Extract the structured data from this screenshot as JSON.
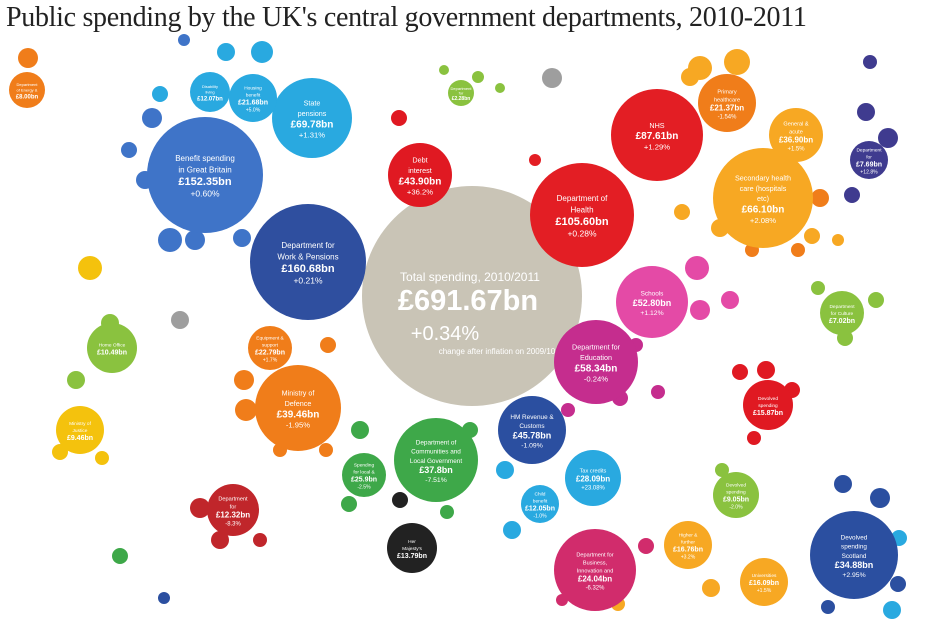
{
  "title": "Public spending by the UK's central government departments, 2010-2011",
  "colors": {
    "background": "#ffffff",
    "total": "#c9c4b6",
    "work_pensions": "#2f4f9f",
    "benefits": "#3f74c8",
    "state_pensions": "#29a9e0",
    "health": "#e31e24",
    "health_sub": "#f7a823",
    "education": "#c52d8e",
    "education_sub": "#e44aa6",
    "defence": "#f07d1a",
    "communities": "#3ea849",
    "hmrc": "#2b4fa0",
    "business": "#d12c6c",
    "scotland": "#2b4fa0",
    "culture": "#8ac23f",
    "debt": "#e01922",
    "transport": "#c0262b",
    "treasury": "#222222",
    "intl_dev": "#3f3b8f",
    "foreign": "#f4c20d",
    "misc_grey": "#9e9e9e"
  },
  "chart_data": {
    "type": "bubble",
    "title": "Public spending by the UK's central government departments, 2010-2011",
    "total": {
      "label": "Total spending, 2010/2011",
      "value": "£691.67bn",
      "change": "+0.34%",
      "change_note": "change after inflation on 2009/10"
    },
    "bubbles": [
      {
        "id": "work-pensions",
        "name": "Department for Work & Pensions",
        "value": "£160.68bn",
        "change": "+0.21%",
        "color": "#2f4f9f"
      },
      {
        "id": "benefits",
        "name": "Benefit spending in Great Britain",
        "value": "£152.35bn",
        "change": "+0.60%",
        "color": "#3f74c8"
      },
      {
        "id": "state-pensions",
        "name": "State pensions",
        "value": "£69.78bn",
        "change": "+1.31%",
        "color": "#29a9e0"
      },
      {
        "id": "health",
        "name": "Department of Health",
        "value": "£105.60bn",
        "change": "+0.28%",
        "color": "#e31e24"
      },
      {
        "id": "nhs",
        "name": "NHS",
        "value": "£87.61bn",
        "change": "+1.29%",
        "color": "#e31e24"
      },
      {
        "id": "secondary-health",
        "name": "Secondary health care (hospitals etc)",
        "value": "£66.10bn",
        "change": "+2.08%",
        "color": "#f7a823"
      },
      {
        "id": "primary-health",
        "name": "Primary healthcare",
        "value": "£21.37bn",
        "change": "-1.54%",
        "color": "#f07d1a"
      },
      {
        "id": "general-acute",
        "name": "General & acute",
        "value": "£36.90bn",
        "change": "+1.5%",
        "color": "#f7a823"
      },
      {
        "id": "debt",
        "name": "Debt interest",
        "value": "£43.90bn",
        "change": "+36.2%",
        "color": "#e01922"
      },
      {
        "id": "education",
        "name": "Department for Education",
        "value": "£58.34bn",
        "change": "-0.24%",
        "color": "#c52d8e"
      },
      {
        "id": "schools",
        "name": "Schools",
        "value": "£52.80bn",
        "change": "+1.12%",
        "color": "#e44aa6"
      },
      {
        "id": "defence",
        "name": "Ministry of Defence",
        "value": "£39.46bn",
        "change": "-1.95%",
        "color": "#f07d1a"
      },
      {
        "id": "equipment",
        "name": "Equipment & support",
        "value": "£22.79bn",
        "change": "+1.7%",
        "color": "#f07d1a"
      },
      {
        "id": "communities",
        "name": "Department of Communities and Local Government",
        "value": "£37.8bn",
        "change": "-7.51%",
        "color": "#3ea849"
      },
      {
        "id": "hmrc",
        "name": "HM Revenue & Customs",
        "value": "£45.78bn",
        "change": "-1.09%",
        "color": "#2b4fa0"
      },
      {
        "id": "tax-credits",
        "name": "Tax credits",
        "value": "£28.09bn",
        "change": "+23.08%",
        "color": "#29a9e0"
      },
      {
        "id": "child-benefit",
        "name": "Child benefit",
        "value": "£12.05bn",
        "change": "-1.0%",
        "color": "#29a9e0"
      },
      {
        "id": "business",
        "name": "Department for Business, Innovation and Skills",
        "value": "£24.04bn",
        "change": "-6.32%",
        "color": "#d12c6c"
      },
      {
        "id": "higher-ed",
        "name": "Higher & further education",
        "value": "£16.76bn",
        "change": "+3.2%",
        "color": "#f7a823"
      },
      {
        "id": "universities",
        "name": "Universities",
        "value": "£16.09bn",
        "change": "+1.5%",
        "color": "#f7a823"
      },
      {
        "id": "scotland",
        "name": "Devolved spending Scotland",
        "value": "£34.88bn",
        "change": "+2.95%",
        "color": "#2b4fa0"
      },
      {
        "id": "n-ireland",
        "name": "Devolved spending Northern Ireland",
        "value": "£9.05bn",
        "change": "-2.0%",
        "color": "#8ac23f"
      },
      {
        "id": "transport",
        "name": "Department for Transport",
        "value": "£12.32bn",
        "change": "-8.3%",
        "color": "#c0262b"
      },
      {
        "id": "culture",
        "name": "Department for Culture Media & Sport",
        "value": "£7.02bn",
        "change": "",
        "color": "#8ac23f"
      },
      {
        "id": "sure-start",
        "name": "Spending for local & regional government",
        "value": "£25.9bn",
        "change": "-2.5%",
        "color": "#3ea849"
      },
      {
        "id": "treasury",
        "name": "Her Majesty's Treasury",
        "value": "£13.79bn",
        "change": "",
        "color": "#222222"
      },
      {
        "id": "intl-dev",
        "name": "Department for International Development",
        "value": "£7.69bn",
        "change": "+12.8%",
        "color": "#3f3b8f"
      },
      {
        "id": "justice",
        "name": "Ministry of Justice",
        "value": "£9.46bn",
        "change": "",
        "color": "#f4c20d"
      },
      {
        "id": "home-office",
        "name": "Home Office",
        "value": "£10.49bn",
        "change": "",
        "color": "#8ac23f"
      },
      {
        "id": "energy",
        "name": "Department of Energy & Climate Change",
        "value": "£8.00bn",
        "change": "",
        "color": "#f07d1a"
      },
      {
        "id": "housing-benefit",
        "name": "Housing benefit",
        "value": "£21.68bn",
        "change": "+5.0%",
        "color": "#29a9e0"
      },
      {
        "id": "disability",
        "name": "Disability living allowance",
        "value": "£12.07bn",
        "change": "",
        "color": "#29a9e0"
      },
      {
        "id": "environment",
        "name": "Department for Environment, Food & Rural Affairs",
        "value": "£2.28bn",
        "change": "",
        "color": "#8ac23f"
      },
      {
        "id": "wales",
        "name": "Devolved spending Wales",
        "value": "£15.87bn",
        "change": "",
        "color": "#e01922"
      }
    ]
  }
}
